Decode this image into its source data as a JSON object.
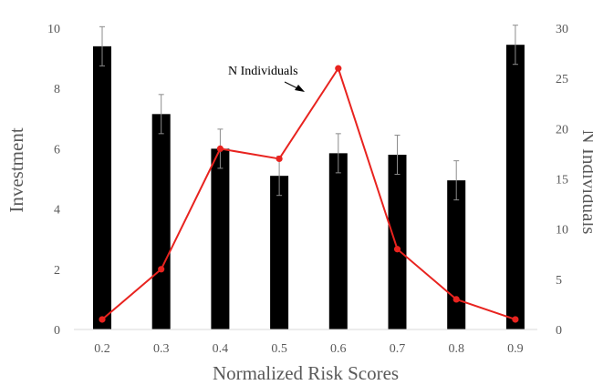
{
  "chart_data": {
    "type": "bar",
    "categories": [
      "0.2",
      "0.3",
      "0.4",
      "0.5",
      "0.6",
      "0.7",
      "0.8",
      "0.9"
    ],
    "xlabel": "Normalized Risk Scores",
    "ylabel": "Investment",
    "y2label": "N Individuals",
    "ylim": [
      0,
      10
    ],
    "y2lim": [
      0,
      30
    ],
    "yticks": [
      "0",
      "2",
      "4",
      "6",
      "8",
      "10"
    ],
    "y2ticks": [
      "0",
      "5",
      "10",
      "15",
      "20",
      "25",
      "30"
    ],
    "grid": false,
    "bars": {
      "axis": "left",
      "color": "#000000",
      "values": [
        9.4,
        7.15,
        6.0,
        5.1,
        5.85,
        5.8,
        4.95,
        9.45
      ],
      "error": [
        0.65,
        0.65,
        0.65,
        0.65,
        0.65,
        0.65,
        0.65,
        0.65
      ]
    },
    "line": {
      "axis": "right",
      "color": "#e8231f",
      "values": [
        1,
        6,
        18,
        17,
        26,
        8,
        3,
        1
      ]
    },
    "annotation": {
      "text": "N Individuals"
    }
  }
}
